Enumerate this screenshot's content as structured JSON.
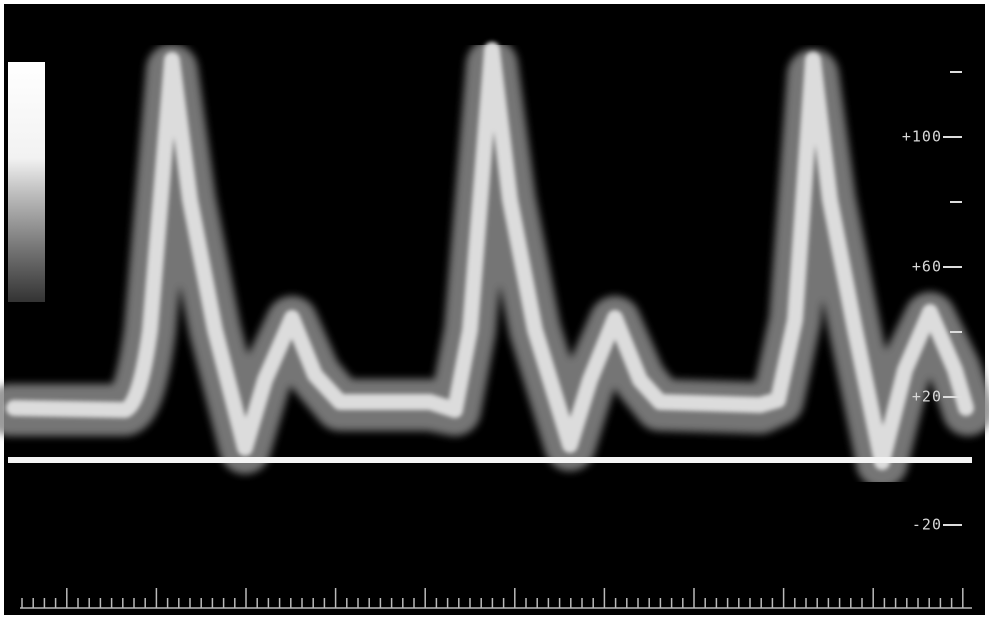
{
  "scale": {
    "labels": [
      "+100",
      "+60",
      "+20",
      "-20"
    ]
  }
}
